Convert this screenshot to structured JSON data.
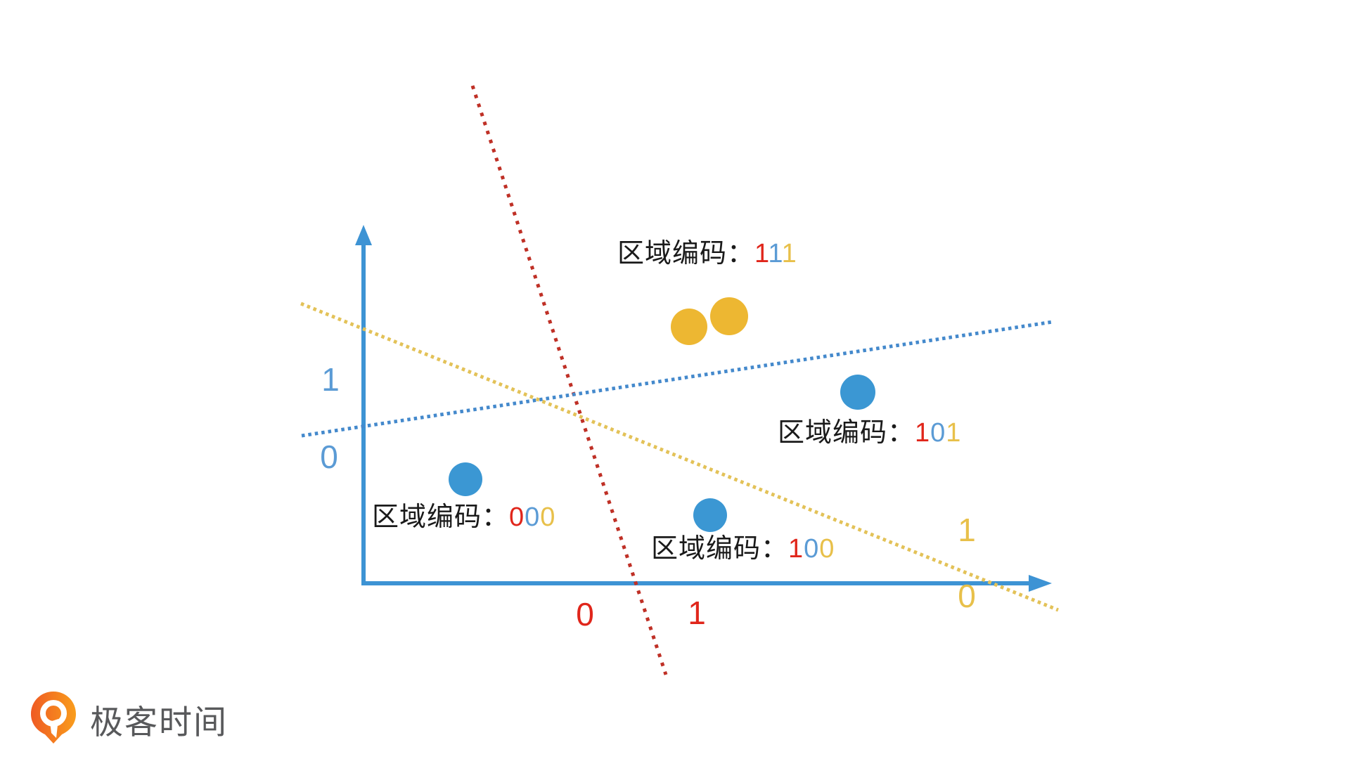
{
  "diagram": {
    "title_hint": "region-encoding illustration with three dotted partition lines",
    "region_labels": [
      {
        "prefix": "区域编码：",
        "digits": [
          "1",
          "1",
          "1"
        ]
      },
      {
        "prefix": "区域编码：",
        "digits": [
          "1",
          "0",
          "1"
        ]
      },
      {
        "prefix": "区域编码：",
        "digits": [
          "0",
          "0",
          "0"
        ]
      },
      {
        "prefix": "区域编码：",
        "digits": [
          "1",
          "0",
          "0"
        ]
      }
    ],
    "axis_digits": {
      "blue_above": "1",
      "blue_below": "0",
      "red_left": "0",
      "red_right": "1",
      "yellow_above": "1",
      "yellow_below": "0"
    },
    "points": [
      {
        "color": "yellow"
      },
      {
        "color": "yellow"
      },
      {
        "color": "blue"
      },
      {
        "color": "blue"
      },
      {
        "color": "blue"
      }
    ],
    "colors": {
      "axis_blue": "#3d93d4",
      "line_red": "#bf3026",
      "line_blue": "#4489cc",
      "line_yellow": "#e3c258",
      "dot_blue": "#3b97d3",
      "dot_yellow": "#edb732",
      "digit_red": "#e0261b",
      "digit_blue": "#5b9bd5",
      "digit_yellow": "#e8c04a",
      "label_text": "#1a1a1a",
      "logo_orange": "#f3701d",
      "logo_text_gray": "#58595b"
    }
  },
  "footer": {
    "logo_text": "极客时间"
  }
}
